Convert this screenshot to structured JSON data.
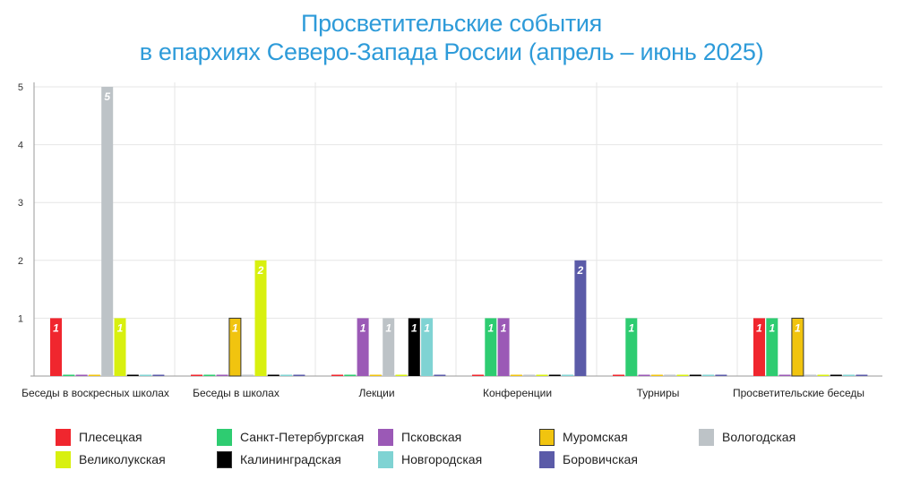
{
  "title_line1": "Просветительские события",
  "title_line2": "в епархиях Северо-Запада России (апрель – июнь 2025)",
  "chart_data": {
    "type": "bar",
    "title": "Просветительские события в епархиях Северо-Запада России (апрель – июнь 2025)",
    "categories": [
      "Беседы в воскресных школах",
      "Беседы в школах",
      "Лекции",
      "Конференции",
      "Турниры",
      "Просветительские беседы"
    ],
    "ylim": [
      0,
      5
    ],
    "yticks": [
      "1",
      "2",
      "3",
      "4",
      "5"
    ],
    "grid": true,
    "legend_position": "bottom",
    "series": [
      {
        "name": "Плесецкая",
        "color": "#f0262e",
        "values": [
          1,
          0,
          0,
          0,
          0,
          1
        ]
      },
      {
        "name": "Санкт-Петербургская",
        "color": "#2ecc71",
        "values": [
          0,
          0,
          0,
          1,
          1,
          1
        ]
      },
      {
        "name": "Псковская",
        "color": "#9b59b6",
        "values": [
          0,
          0,
          1,
          1,
          0,
          0
        ]
      },
      {
        "name": "Муромская",
        "color": "#f1c40f",
        "values": [
          0,
          1,
          0,
          0,
          0,
          1
        ]
      },
      {
        "name": "Вологодская",
        "color": "#bdc3c7",
        "values": [
          5,
          0,
          1,
          0,
          0,
          0
        ]
      },
      {
        "name": "Великолукская",
        "color": "#d8f00f",
        "values": [
          1,
          2,
          0,
          0,
          0,
          0
        ]
      },
      {
        "name": "Калининградская",
        "color": "#000000",
        "values": [
          0,
          0,
          1,
          0,
          0,
          0
        ]
      },
      {
        "name": "Новгородская",
        "color": "#7fd3d3",
        "values": [
          0,
          0,
          1,
          0,
          0,
          0
        ]
      },
      {
        "name": "Боровичская",
        "color": "#5b5ba8",
        "values": [
          0,
          0,
          0,
          2,
          0,
          0
        ]
      }
    ]
  }
}
